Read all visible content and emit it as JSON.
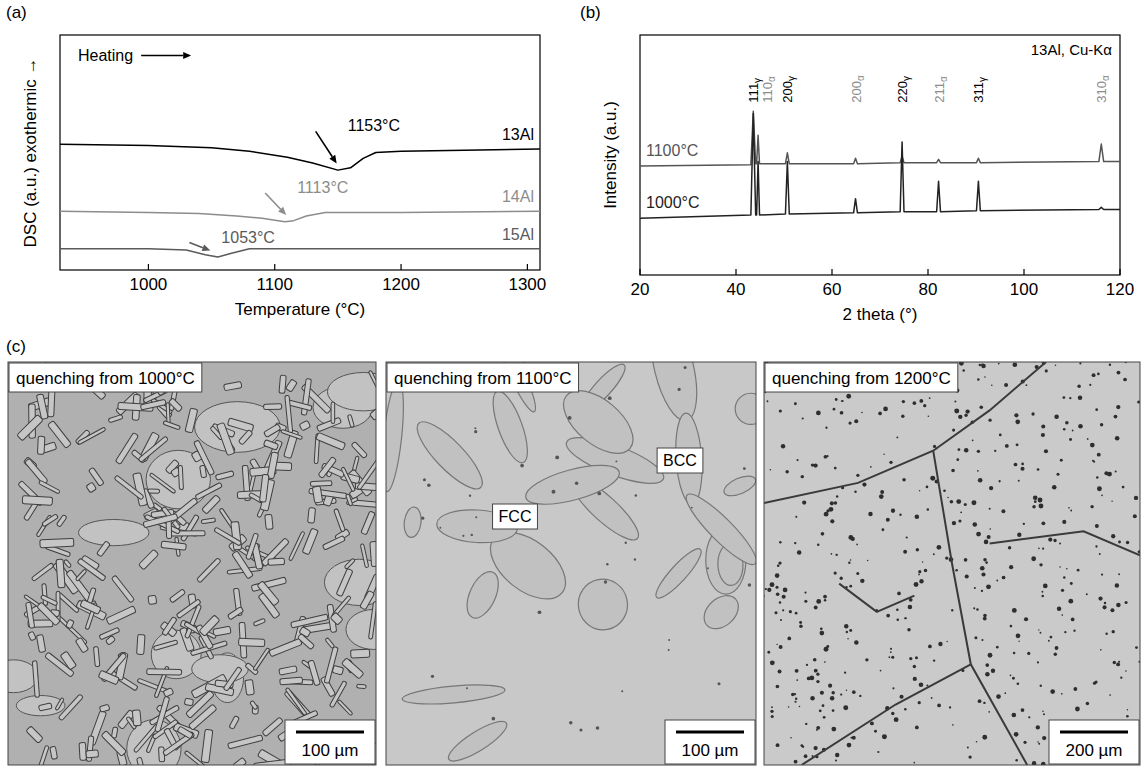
{
  "chart_data": [
    {
      "type": "line",
      "panel": "(a)",
      "x_label": "Temperature (°C)",
      "y_label": "DSC (a.u.) exothermic →",
      "direction_label": "Heating",
      "xlim": [
        930,
        1310
      ],
      "xticks": [
        1000,
        1100,
        1200,
        1300
      ],
      "ylim": [
        0,
        10
      ],
      "tick_labels": "x",
      "series": [
        {
          "name": "13Al",
          "color": "#000000",
          "x": [
            930,
            1000,
            1050,
            1080,
            1110,
            1130,
            1150,
            1160,
            1170,
            1180,
            1200,
            1250,
            1310
          ],
          "values": [
            5.35,
            5.3,
            5.2,
            5.05,
            4.8,
            4.55,
            4.25,
            4.35,
            4.75,
            5.0,
            5.05,
            5.1,
            5.15
          ],
          "annotation": {
            "text": "1153°C",
            "x": 1153
          }
        },
        {
          "name": "14Al",
          "color": "#8c8c8c",
          "x": [
            930,
            1000,
            1040,
            1070,
            1090,
            1108,
            1115,
            1125,
            1140,
            1200,
            1310
          ],
          "values": [
            2.5,
            2.45,
            2.4,
            2.3,
            2.2,
            2.05,
            2.1,
            2.3,
            2.45,
            2.45,
            2.5
          ],
          "annotation": {
            "text": "1113°C",
            "x": 1113
          }
        },
        {
          "name": "15Al",
          "color": "#5a5a5a",
          "x": [
            930,
            1000,
            1030,
            1045,
            1055,
            1065,
            1080,
            1150,
            1310
          ],
          "values": [
            0.9,
            0.9,
            0.85,
            0.65,
            0.55,
            0.7,
            0.9,
            0.9,
            0.9
          ],
          "annotation": {
            "text": "1053°C",
            "x": 1053
          }
        }
      ]
    },
    {
      "type": "line",
      "panel": "(b)",
      "x_label": "2 theta (°)",
      "y_label": "Intensity (a.u.)",
      "note": "13Al, Cu-Kα",
      "xlim": [
        20,
        120
      ],
      "xticks": [
        20,
        40,
        60,
        80,
        100,
        120
      ],
      "ylim": [
        0,
        11
      ],
      "tick_labels": "x",
      "series": [
        {
          "name": "1100°C",
          "color": "#555555",
          "x": [
            20,
            43.1,
            43.6,
            44.1,
            44.3,
            44.6,
            44.9,
            50.3,
            50.7,
            51.1,
            64.5,
            64.9,
            65.3,
            74.2,
            74.6,
            75.0,
            81.8,
            82.2,
            82.6,
            90.1,
            90.5,
            90.9,
            115.6,
            116.1,
            116.6,
            120
          ],
          "values": [
            5.0,
            5.05,
            7.5,
            5.1,
            5.1,
            6.4,
            5.1,
            5.1,
            5.6,
            5.1,
            5.1,
            5.35,
            5.1,
            5.15,
            5.45,
            5.15,
            5.15,
            5.3,
            5.15,
            5.15,
            5.35,
            5.15,
            5.2,
            6.0,
            5.2,
            5.2
          ]
        },
        {
          "name": "1000°C",
          "color": "#222222",
          "x": [
            20,
            43.1,
            43.6,
            44.1,
            44.3,
            44.6,
            44.9,
            50.3,
            50.7,
            51.1,
            64.5,
            64.9,
            65.3,
            74.2,
            74.6,
            75.0,
            81.8,
            82.2,
            82.6,
            90.1,
            90.5,
            90.9,
            115.6,
            116.1,
            116.6,
            120
          ],
          "values": [
            2.6,
            2.75,
            7.4,
            2.75,
            2.75,
            5.2,
            2.75,
            2.8,
            5.2,
            2.8,
            2.85,
            3.5,
            2.85,
            2.9,
            6.1,
            2.9,
            2.9,
            4.3,
            2.9,
            2.95,
            4.3,
            2.95,
            3.0,
            3.1,
            3.0,
            3.0
          ]
        }
      ],
      "peak_labels": [
        {
          "hkl": "111",
          "phase": "γ",
          "x": 43.6,
          "color": "#000000"
        },
        {
          "hkl": "110",
          "phase": "α",
          "x": 44.6,
          "color": "#8c8c8c"
        },
        {
          "hkl": "200",
          "phase": "γ",
          "x": 50.7,
          "color": "#000000"
        },
        {
          "hkl": "200",
          "phase": "α",
          "x": 64.9,
          "color": "#8c8c8c"
        },
        {
          "hkl": "220",
          "phase": "γ",
          "x": 74.6,
          "color": "#000000"
        },
        {
          "hkl": "211",
          "phase": "α",
          "x": 82.2,
          "color": "#8c8c8c"
        },
        {
          "hkl": "311",
          "phase": "γ",
          "x": 90.5,
          "color": "#000000"
        },
        {
          "hkl": "310",
          "phase": "α",
          "x": 116.1,
          "color": "#8c8c8c"
        }
      ]
    }
  ],
  "micrographs": {
    "panel": "(c)",
    "images": [
      {
        "title": "quenching from 1000°C",
        "scale_bar": "100 µm"
      },
      {
        "title": "quenching from 1100°C",
        "scale_bar": "100 µm",
        "phase_labels": [
          "BCC",
          "FCC"
        ]
      },
      {
        "title": "quenching from 1200°C",
        "scale_bar": "200 µm"
      }
    ]
  }
}
